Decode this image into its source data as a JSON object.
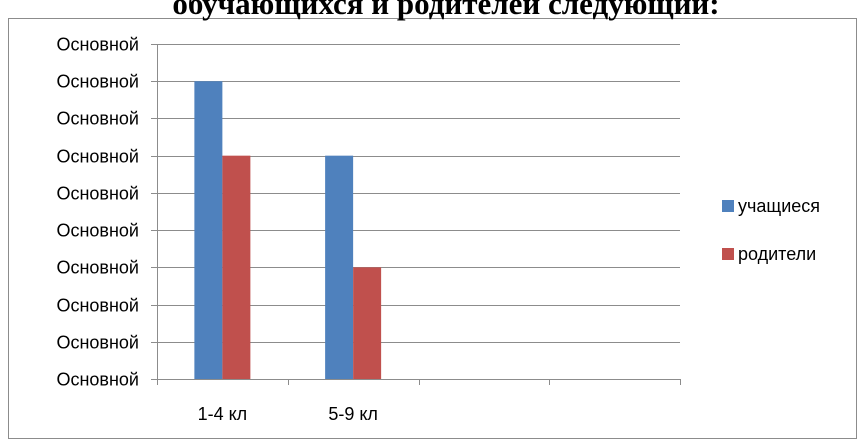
{
  "chart_data": {
    "type": "bar",
    "title": "обучающихся и родителей следующий:",
    "categories": [
      "1-4 кл",
      "5-9 кл",
      "",
      ""
    ],
    "series": [
      {
        "name": "учащиеся",
        "values": [
          8,
          6,
          null,
          null
        ],
        "color": "#4F81BD"
      },
      {
        "name": "родители",
        "values": [
          6,
          3,
          null,
          null
        ],
        "color": "#C0504D"
      }
    ],
    "ytick_labels": [
      "Основной",
      "Основной",
      "Основной",
      "Основной",
      "Основной",
      "Основной",
      "Основной",
      "Основной",
      "Основной",
      "Основной"
    ],
    "ylim": [
      0,
      9
    ],
    "grid": true,
    "legend_position": "right"
  }
}
